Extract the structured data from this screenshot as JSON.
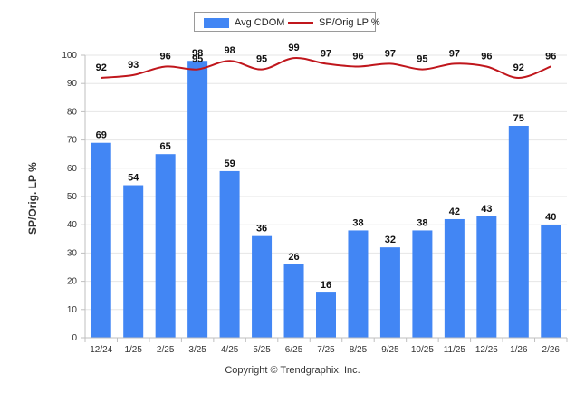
{
  "chart_data": {
    "type": "bar+line",
    "categories": [
      "12/24",
      "1/25",
      "2/25",
      "3/25",
      "4/25",
      "5/25",
      "6/25",
      "7/25",
      "8/25",
      "9/25",
      "10/25",
      "11/25",
      "12/25",
      "1/26",
      "2/26"
    ],
    "series": [
      {
        "name": "Avg CDOM",
        "type": "bar",
        "color": "#4286f4",
        "values": [
          69,
          54,
          65,
          98,
          59,
          36,
          26,
          16,
          38,
          32,
          38,
          42,
          43,
          75,
          40
        ]
      },
      {
        "name": "SP/Orig LP %",
        "type": "line",
        "color": "#c0161c",
        "values": [
          92,
          93,
          96,
          95,
          98,
          95,
          99,
          97,
          96,
          97,
          95,
          97,
          96,
          92,
          96
        ]
      }
    ],
    "ylabel": "SP/Orig. LP %",
    "ylim": [
      0,
      100
    ],
    "yticks": [
      0,
      10,
      20,
      30,
      40,
      50,
      60,
      70,
      80,
      90,
      100
    ],
    "grid": true,
    "legend_position": "top-center"
  },
  "footer": {
    "copyright": "Copyright © Trendgraphix, Inc."
  }
}
